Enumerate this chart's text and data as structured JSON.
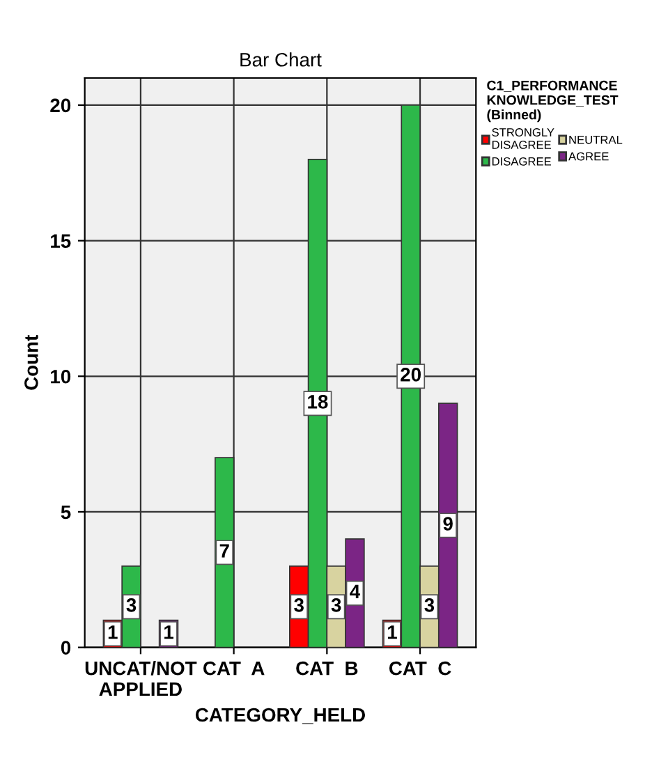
{
  "chart_data": {
    "type": "bar",
    "title": "Bar Chart",
    "xlabel": "CATEGORY_HELD",
    "ylabel": "Count",
    "legend_title": "C1_PERFORMANCE\nKNOWLEDGE_TEST\n(Binned)",
    "categories": [
      "UNCAT/NOT\nAPPLIED",
      "CAT  A",
      "CAT  B",
      "CAT  C"
    ],
    "series": [
      {
        "name": "STRONGLY\nDISAGREE",
        "color": "#ff0000",
        "values": [
          1,
          null,
          3,
          1
        ]
      },
      {
        "name": "DISAGREE",
        "color": "#2db84a",
        "values": [
          3,
          7,
          18,
          20
        ]
      },
      {
        "name": "NEUTRAL",
        "color": "#d8d3a0",
        "values": [
          null,
          null,
          3,
          3
        ]
      },
      {
        "name": "AGREE",
        "color": "#7b2585",
        "values": [
          1,
          null,
          4,
          9
        ]
      }
    ],
    "ylim": [
      0,
      21
    ],
    "yticks": [
      0,
      5,
      10,
      15,
      20
    ],
    "grid": true,
    "legend": "right",
    "data_labels": true
  }
}
